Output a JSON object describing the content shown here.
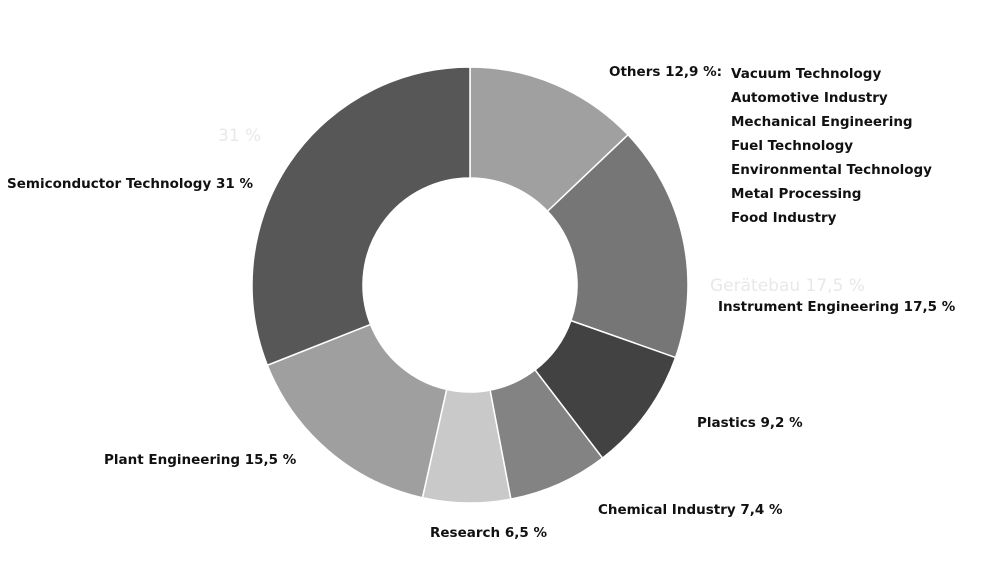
{
  "chart_data": {
    "type": "pie",
    "donut": true,
    "slices": [
      {
        "label": "Others 12,9 %:",
        "value": 12.9,
        "color": "#a0a0a0"
      },
      {
        "label": "Instrument Engineering 17,5 %",
        "value": 17.5,
        "color": "#767676"
      },
      {
        "label": "Plastics 9,2 %",
        "value": 9.2,
        "color": "#424242"
      },
      {
        "label": "Chemical Industry 7,4 %",
        "value": 7.4,
        "color": "#838383"
      },
      {
        "label": "Research 6,5 %",
        "value": 6.5,
        "color": "#c9c9c9"
      },
      {
        "label": "Plant Engineering 15,5 %",
        "value": 15.5,
        "color": "#9f9f9f"
      },
      {
        "label": "Semiconductor Technology 31 %",
        "value": 31,
        "color": "#575757"
      }
    ],
    "others_breakdown": [
      "Vacuum Technology",
      "Automotive Industry",
      "Mechanical Engineering",
      "Fuel Technology",
      "Environmental Technology",
      "Metal Processing",
      "Food Industry"
    ],
    "ghost_text": [
      "31 %",
      "Gerätebau 17,5 %"
    ]
  }
}
